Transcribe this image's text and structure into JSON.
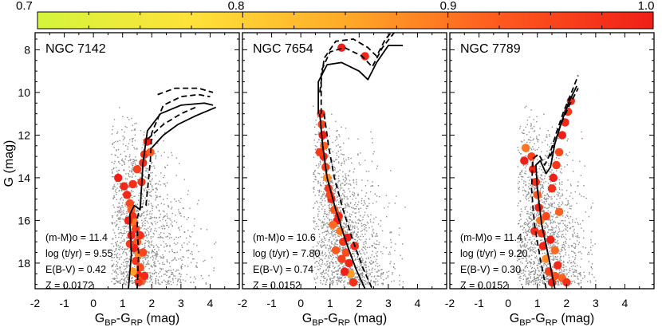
{
  "colorbar": {
    "ticks": [
      "0.7",
      "0.8",
      "0.9",
      "1.0"
    ],
    "range": [
      0.7,
      1.0
    ],
    "colors": [
      "#d4f53c",
      "#ffe23a",
      "#ffaa28",
      "#ff5a1e",
      "#ef1f17"
    ]
  },
  "axes": {
    "ylabel": "G (mag)",
    "xlabel_main": "G",
    "xlabel_sub1": "BP",
    "xlabel_dash": "-G",
    "xlabel_sub2": "RP",
    "xlabel_unit": " (mag)",
    "x_tick_labels": [
      "-2",
      "-1",
      "0",
      "1",
      "2",
      "3",
      "4"
    ],
    "y_tick_labels": [
      "8",
      "10",
      "12",
      "14",
      "16",
      "18"
    ]
  },
  "chart_data": [
    {
      "type": "scatter",
      "title": "NGC 7142",
      "xlabel": "GBP-GRP (mag)",
      "ylabel": "G (mag)",
      "xlim": [
        -2,
        5
      ],
      "ylim": [
        19.2,
        7.2
      ],
      "params": [
        "(m-M)o = 11.4",
        "log (t/yr) = 9.55",
        "E(B-V) = 0.42",
        "Z = 0.0172"
      ],
      "field": {
        "x_range": [
          0.6,
          4.2
        ],
        "y_range": [
          10.5,
          19
        ]
      },
      "members": [
        [
          1.25,
          15.2,
          0.95
        ],
        [
          1.3,
          15.5,
          0.92
        ],
        [
          1.35,
          15.8,
          0.98
        ],
        [
          1.4,
          16.1,
          0.9
        ],
        [
          1.45,
          16.4,
          0.96
        ],
        [
          1.3,
          16.7,
          0.99
        ],
        [
          1.5,
          17.0,
          0.93
        ],
        [
          1.4,
          17.3,
          1.0
        ],
        [
          1.55,
          17.6,
          0.88
        ],
        [
          1.45,
          17.9,
          0.97
        ],
        [
          1.6,
          18.2,
          0.94
        ],
        [
          1.5,
          18.5,
          0.99
        ],
        [
          1.65,
          18.8,
          0.91
        ],
        [
          1.55,
          18.9,
          0.97
        ],
        [
          1.2,
          16.0,
          1.0
        ],
        [
          1.7,
          17.5,
          0.95
        ],
        [
          1.35,
          18.4,
          0.86
        ],
        [
          1.75,
          18.6,
          0.99
        ],
        [
          1.6,
          16.7,
          0.98
        ],
        [
          1.25,
          17.1,
          0.97
        ],
        [
          0.85,
          14.0,
          1.0
        ],
        [
          1.05,
          14.4,
          0.99
        ],
        [
          1.35,
          14.3,
          0.98
        ],
        [
          1.65,
          14.2,
          0.97
        ],
        [
          1.5,
          13.6,
          0.96
        ],
        [
          1.75,
          12.9,
          0.98
        ],
        [
          1.85,
          12.3,
          1.0
        ],
        [
          1.95,
          12.8,
          0.93
        ],
        [
          1.7,
          13.3,
          0.98
        ],
        [
          1.15,
          14.8,
          0.99
        ]
      ],
      "isochrones": [
        {
          "style": "solid",
          "points": [
            [
              1.2,
              19.2
            ],
            [
              1.3,
              17.6
            ],
            [
              1.25,
              16.2
            ],
            [
              1.25,
              15.7
            ],
            [
              1.4,
              15.3
            ],
            [
              1.6,
              15.5
            ],
            [
              1.7,
              13.3
            ],
            [
              1.85,
              11.8
            ],
            [
              2.3,
              11.0
            ],
            [
              3.0,
              10.6
            ],
            [
              3.8,
              10.5
            ],
            [
              4.1,
              10.6
            ]
          ]
        },
        {
          "style": "solid",
          "points": [
            [
              4.2,
              10.7
            ],
            [
              3.5,
              11.1
            ],
            [
              2.9,
              11.5
            ],
            [
              2.4,
              12.0
            ],
            [
              2.0,
              12.6
            ]
          ]
        },
        {
          "style": "dashed",
          "points": [
            [
              1.5,
              19.2
            ],
            [
              1.55,
              17.6
            ],
            [
              1.5,
              16.4
            ],
            [
              1.5,
              15.9
            ],
            [
              1.6,
              15.4
            ],
            [
              1.8,
              15.3
            ],
            [
              1.95,
              13.2
            ],
            [
              2.0,
              11.9
            ],
            [
              2.4,
              10.6
            ],
            [
              3.0,
              10.2
            ],
            [
              3.6,
              10.1
            ],
            [
              4.0,
              10.2
            ]
          ]
        },
        {
          "style": "dashed",
          "points": [
            [
              1.85,
              12.2
            ],
            [
              2.4,
              11.5
            ],
            [
              3.0,
              11.0
            ],
            [
              3.5,
              10.7
            ]
          ]
        },
        {
          "style": "dashed",
          "points": [
            [
              2.2,
              10.1
            ],
            [
              2.8,
              9.8
            ],
            [
              3.6,
              9.8
            ],
            [
              4.1,
              10.0
            ]
          ]
        }
      ]
    },
    {
      "type": "scatter",
      "title": "NGC 7654",
      "xlabel": "GBP-GRP (mag)",
      "ylabel": "G (mag)",
      "xlim": [
        -2,
        5
      ],
      "ylim": [
        19.2,
        7.2
      ],
      "params": [
        "(m-M)o = 10.6",
        "log (t/yr) = 7.80",
        "E(B-V) = 0.74",
        "Z = 0.0152"
      ],
      "field": {
        "x_range": [
          0.4,
          3.6
        ],
        "y_range": [
          10.5,
          19
        ]
      },
      "members": [
        [
          0.7,
          11.0,
          0.98
        ],
        [
          0.72,
          11.5,
          0.95
        ],
        [
          0.75,
          12.0,
          1.0
        ],
        [
          0.8,
          12.5,
          0.92
        ],
        [
          0.78,
          13.0,
          0.99
        ],
        [
          0.85,
          13.5,
          0.96
        ],
        [
          0.9,
          14.0,
          0.88
        ],
        [
          0.95,
          14.5,
          0.97
        ],
        [
          1.05,
          15.0,
          0.99
        ],
        [
          1.15,
          15.5,
          0.93
        ],
        [
          1.25,
          16.0,
          1.0
        ],
        [
          1.35,
          16.5,
          0.9
        ],
        [
          1.45,
          17.0,
          0.97
        ],
        [
          1.55,
          17.5,
          0.94
        ],
        [
          1.65,
          18.0,
          0.99
        ],
        [
          1.7,
          18.5,
          0.86
        ],
        [
          1.8,
          18.9,
          0.98
        ],
        [
          1.0,
          14.8,
          0.95
        ],
        [
          1.3,
          15.8,
          0.99
        ],
        [
          1.1,
          16.2,
          0.91
        ],
        [
          1.6,
          16.8,
          1.0
        ],
        [
          1.4,
          17.8,
          0.96
        ],
        [
          1.85,
          17.2,
          0.98
        ],
        [
          1.2,
          17.4,
          0.93
        ],
        [
          1.5,
          18.4,
          1.0
        ],
        [
          0.65,
          12.8,
          0.97
        ],
        [
          1.4,
          7.9,
          1.0
        ],
        [
          2.2,
          8.3,
          0.99
        ]
      ],
      "isochrones": [
        {
          "style": "solid",
          "points": [
            [
              0.65,
              11.0
            ],
            [
              0.75,
              12.5
            ],
            [
              0.9,
              14.0
            ],
            [
              1.2,
              15.5
            ],
            [
              1.55,
              17.0
            ],
            [
              1.9,
              18.3
            ],
            [
              2.2,
              19.2
            ]
          ]
        },
        {
          "style": "dashed",
          "points": [
            [
              0.8,
              11.0
            ],
            [
              0.95,
              12.5
            ],
            [
              1.15,
              14.0
            ],
            [
              1.45,
              15.5
            ],
            [
              1.8,
              17.0
            ],
            [
              2.15,
              18.3
            ],
            [
              2.45,
              19.2
            ]
          ]
        },
        {
          "style": "solid",
          "points": [
            [
              0.6,
              11.0
            ],
            [
              0.6,
              9.5
            ],
            [
              0.9,
              8.7
            ],
            [
              1.4,
              8.6
            ],
            [
              2.0,
              9.0
            ],
            [
              2.3,
              9.4
            ],
            [
              2.6,
              8.6
            ],
            [
              3.0,
              7.8
            ],
            [
              3.5,
              7.8
            ]
          ]
        },
        {
          "style": "dashed",
          "points": [
            [
              0.7,
              11.0
            ],
            [
              0.7,
              9.0
            ],
            [
              1.0,
              8.1
            ],
            [
              1.5,
              7.9
            ],
            [
              2.1,
              8.3
            ],
            [
              2.45,
              8.8
            ],
            [
              2.8,
              7.9
            ],
            [
              3.2,
              7.2
            ]
          ]
        },
        {
          "style": "dashed",
          "points": [
            [
              0.65,
              10.0
            ],
            [
              0.8,
              8.4
            ],
            [
              1.2,
              7.6
            ],
            [
              1.8,
              7.5
            ],
            [
              2.3,
              7.9
            ],
            [
              2.6,
              8.3
            ],
            [
              2.9,
              7.5
            ],
            [
              3.1,
              7.2
            ]
          ]
        }
      ]
    },
    {
      "type": "scatter",
      "title": "NGC 7789",
      "xlabel": "GBP-GRP (mag)",
      "ylabel": "G (mag)",
      "xlim": [
        -2,
        5
      ],
      "ylim": [
        19.2,
        7.2
      ],
      "params": [
        "(m-M)o = 11.4",
        "log (t/yr) = 9.20",
        "E(B-V) = 0.30",
        "Z = 0.0152"
      ],
      "field": {
        "x_range": [
          0.3,
          3.0
        ],
        "y_range": [
          10.5,
          19
        ]
      },
      "members": [
        [
          0.95,
          14.2,
          0.98
        ],
        [
          1.0,
          14.8,
          0.93
        ],
        [
          1.05,
          15.4,
          1.0
        ],
        [
          1.1,
          16.0,
          0.9
        ],
        [
          1.15,
          16.6,
          0.97
        ],
        [
          1.2,
          17.2,
          0.99
        ],
        [
          1.3,
          17.8,
          0.88
        ],
        [
          1.4,
          18.4,
          0.96
        ],
        [
          1.5,
          18.9,
          1.0
        ],
        [
          1.6,
          18.6,
          0.94
        ],
        [
          1.7,
          18.1,
          0.99
        ],
        [
          1.85,
          18.7,
          0.92
        ],
        [
          2.0,
          18.9,
          0.98
        ],
        [
          1.3,
          15.8,
          0.95
        ],
        [
          1.45,
          16.9,
          1.0
        ],
        [
          1.6,
          17.4,
          0.91
        ],
        [
          0.85,
          13.6,
          0.99
        ],
        [
          0.8,
          13.0,
          0.96
        ],
        [
          1.5,
          14.5,
          0.98
        ],
        [
          1.55,
          14.0,
          1.0
        ],
        [
          1.65,
          13.4,
          0.97
        ],
        [
          1.75,
          12.8,
          0.95
        ],
        [
          1.85,
          12.0,
          1.0
        ],
        [
          1.95,
          11.4,
          0.99
        ],
        [
          2.05,
          10.9,
          0.97
        ],
        [
          2.15,
          10.4,
          0.98
        ],
        [
          0.6,
          12.6,
          0.9
        ],
        [
          0.55,
          13.2,
          1.0
        ],
        [
          0.9,
          16.5,
          0.98
        ],
        [
          1.75,
          15.6,
          0.92
        ]
      ],
      "isochrones": [
        {
          "style": "solid",
          "points": [
            [
              1.6,
              19.2
            ],
            [
              1.4,
              17.8
            ],
            [
              1.15,
              16.2
            ],
            [
              1.0,
              14.5
            ],
            [
              0.95,
              13.4
            ],
            [
              1.1,
              13.2
            ],
            [
              1.3,
              13.8
            ],
            [
              1.45,
              13.5
            ],
            [
              1.6,
              12.4
            ],
            [
              1.85,
              11.3
            ],
            [
              2.1,
              10.4
            ],
            [
              2.35,
              9.7
            ]
          ]
        },
        {
          "style": "dashed",
          "points": [
            [
              1.3,
              19.2
            ],
            [
              1.1,
              17.8
            ],
            [
              0.9,
              16.2
            ],
            [
              0.8,
              14.5
            ],
            [
              0.85,
              13.1
            ],
            [
              1.05,
              12.9
            ],
            [
              1.25,
              13.4
            ],
            [
              1.4,
              13.0
            ],
            [
              1.65,
              11.9
            ],
            [
              1.9,
              10.9
            ],
            [
              2.2,
              9.9
            ],
            [
              2.4,
              9.2
            ]
          ]
        },
        {
          "style": "dashed",
          "points": [
            [
              1.45,
              13.0
            ],
            [
              1.8,
              11.5
            ],
            [
              2.1,
              10.6
            ],
            [
              2.4,
              9.8
            ]
          ]
        }
      ]
    }
  ]
}
